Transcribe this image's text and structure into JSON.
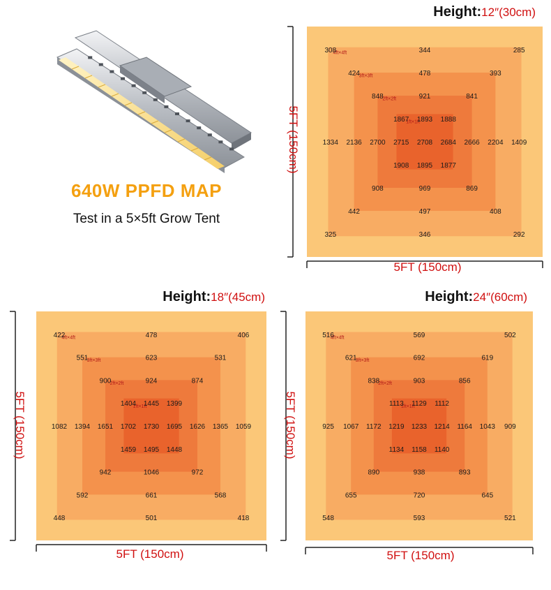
{
  "header": {
    "title": "640W PPFD MAP",
    "subtitle": "Test in a 5×5ft Grow Tent"
  },
  "colors": {
    "zone_4ft": "#fbc778",
    "zone_3ft": "#f8ac63",
    "zone_2ft": "#f4924c",
    "zone_1ft": "#ee7a3c",
    "zone_core": "#e9632c",
    "title": "#f4a010",
    "accent_red": "#d01010"
  },
  "zone_labels": [
    "4ft×4ft",
    "3ft×3ft",
    "2ft×2ft",
    "1ft×1ft"
  ],
  "chart_data": [
    {
      "type": "heatmap",
      "title_label": "Height:",
      "title_value": "12″(30cm)",
      "xlabel": "5FT (150cm)",
      "ylabel": "5FT (150cm)",
      "values": [
        [
          "308",
          "",
          "",
          "",
          "344",
          "",
          "",
          "",
          "285"
        ],
        [
          "",
          "424",
          "",
          "",
          "478",
          "",
          "",
          "393",
          ""
        ],
        [
          "",
          "",
          "848",
          "",
          "921",
          "",
          "841",
          "",
          ""
        ],
        [
          "",
          "",
          "",
          "1867",
          "1893",
          "1888",
          "",
          "",
          ""
        ],
        [
          "1334",
          "2136",
          "2700",
          "2715",
          "2708",
          "2684",
          "2666",
          "2204",
          "1409"
        ],
        [
          "",
          "",
          "",
          "1908",
          "1895",
          "1877",
          "",
          "",
          ""
        ],
        [
          "",
          "",
          "908",
          "",
          "969",
          "",
          "869",
          "",
          ""
        ],
        [
          "",
          "442",
          "",
          "",
          "497",
          "",
          "",
          "408",
          ""
        ],
        [
          "325",
          "",
          "",
          "",
          "346",
          "",
          "",
          "",
          "292"
        ]
      ]
    },
    {
      "type": "heatmap",
      "title_label": "Height:",
      "title_value": "18″(45cm)",
      "xlabel": "5FT (150cm)",
      "ylabel": "5FT (150cm)",
      "values": [
        [
          "422",
          "",
          "",
          "",
          "478",
          "",
          "",
          "",
          "406"
        ],
        [
          "",
          "551",
          "",
          "",
          "623",
          "",
          "",
          "531",
          ""
        ],
        [
          "",
          "",
          "900",
          "",
          "924",
          "",
          "874",
          "",
          ""
        ],
        [
          "",
          "",
          "",
          "1404",
          "1445",
          "1399",
          "",
          "",
          ""
        ],
        [
          "1082",
          "1394",
          "1651",
          "1702",
          "1730",
          "1695",
          "1626",
          "1365",
          "1059"
        ],
        [
          "",
          "",
          "",
          "1459",
          "1495",
          "1448",
          "",
          "",
          ""
        ],
        [
          "",
          "",
          "942",
          "",
          "1046",
          "",
          "972",
          "",
          ""
        ],
        [
          "",
          "592",
          "",
          "",
          "661",
          "",
          "",
          "568",
          ""
        ],
        [
          "448",
          "",
          "",
          "",
          "501",
          "",
          "",
          "",
          "418"
        ]
      ]
    },
    {
      "type": "heatmap",
      "title_label": "Height:",
      "title_value": "24″(60cm)",
      "xlabel": "5FT (150cm)",
      "ylabel": "5FT (150cm)",
      "values": [
        [
          "516",
          "",
          "",
          "",
          "569",
          "",
          "",
          "",
          "502"
        ],
        [
          "",
          "621",
          "",
          "",
          "692",
          "",
          "",
          "619",
          ""
        ],
        [
          "",
          "",
          "838",
          "",
          "903",
          "",
          "856",
          "",
          ""
        ],
        [
          "",
          "",
          "",
          "1113",
          "1129",
          "1112",
          "",
          "",
          ""
        ],
        [
          "925",
          "1067",
          "1172",
          "1219",
          "1233",
          "1214",
          "1164",
          "1043",
          "909"
        ],
        [
          "",
          "",
          "",
          "1134",
          "1158",
          "1140",
          "",
          "",
          ""
        ],
        [
          "",
          "",
          "890",
          "",
          "938",
          "",
          "893",
          "",
          ""
        ],
        [
          "",
          "655",
          "",
          "",
          "720",
          "",
          "",
          "645",
          ""
        ],
        [
          "548",
          "",
          "",
          "",
          "593",
          "",
          "",
          "",
          "521"
        ]
      ]
    }
  ]
}
